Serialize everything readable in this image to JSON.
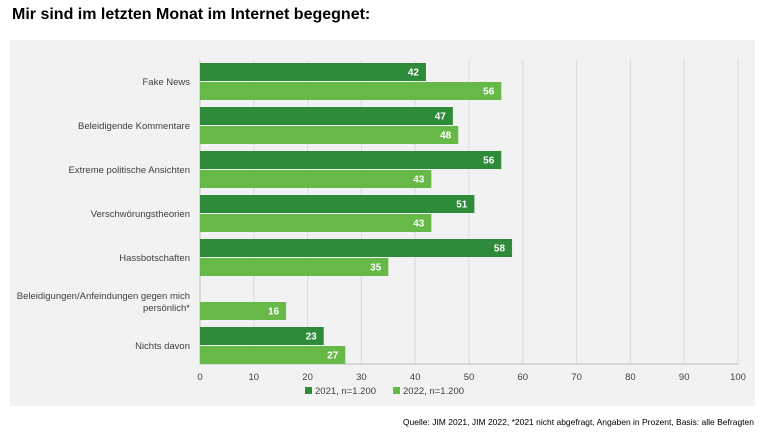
{
  "title": "Mir sind im letzten Monat im Internet begegnet:",
  "source": "Quelle: JIM 2021, JIM 2022, *2021 nicht abgefragt, Angaben in Prozent, Basis: alle Befragten",
  "chart_data": {
    "type": "bar",
    "orientation": "horizontal",
    "categories": [
      [
        "Fake News"
      ],
      [
        "Beleidigende Kommentare"
      ],
      [
        "Extreme politische Ansichten"
      ],
      [
        "Verschwörungstheorien"
      ],
      [
        "Hassbotschaften"
      ],
      [
        "Beleidigungen/Anfeindungen gegen mich",
        "persönlich*"
      ],
      [
        "Nichts davon"
      ]
    ],
    "series": [
      {
        "name": "2021, n=1.200",
        "color": "#2e8b3a",
        "values": [
          42,
          47,
          56,
          51,
          58,
          null,
          23
        ]
      },
      {
        "name": "2022, n=1.200",
        "color": "#66b947",
        "values": [
          56,
          48,
          43,
          43,
          35,
          16,
          27
        ]
      }
    ],
    "xlim": [
      0,
      100
    ],
    "xticks": [
      0,
      10,
      20,
      30,
      40,
      50,
      60,
      70,
      80,
      90,
      100
    ],
    "grid": true,
    "legend_position": "bottom"
  }
}
